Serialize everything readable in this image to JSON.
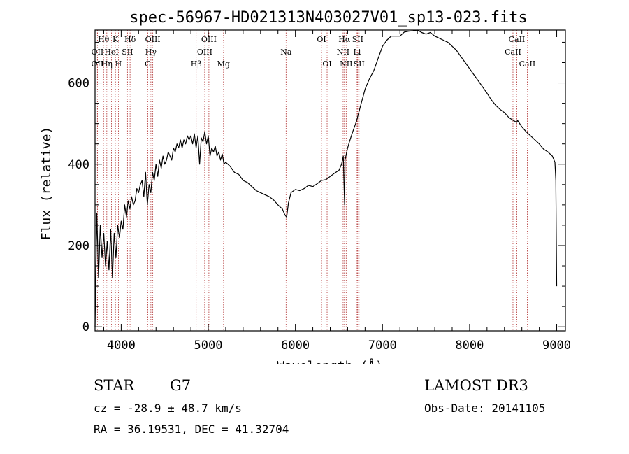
{
  "chart_data": {
    "type": "line",
    "title": "spec-56967-HD021313N403027V01_sp13-023.fits",
    "xlabel": "Wavelength (Å)",
    "ylabel": "Flux (relative)",
    "xlim": [
      3700,
      9100
    ],
    "ylim": [
      -10,
      730
    ],
    "xticks": [
      4000,
      5000,
      6000,
      7000,
      8000,
      9000
    ],
    "yticks": [
      0,
      200,
      400,
      600
    ],
    "series": [
      {
        "name": "flux",
        "x": [
          3700,
          3720,
          3740,
          3760,
          3780,
          3800,
          3820,
          3840,
          3860,
          3880,
          3900,
          3920,
          3940,
          3960,
          3980,
          4000,
          4020,
          4040,
          4060,
          4080,
          4100,
          4120,
          4140,
          4160,
          4180,
          4200,
          4220,
          4240,
          4260,
          4280,
          4300,
          4320,
          4340,
          4360,
          4380,
          4400,
          4420,
          4440,
          4460,
          4480,
          4500,
          4520,
          4540,
          4560,
          4580,
          4600,
          4620,
          4640,
          4660,
          4680,
          4700,
          4720,
          4740,
          4760,
          4780,
          4800,
          4820,
          4840,
          4860,
          4880,
          4900,
          4920,
          4940,
          4960,
          4980,
          5000,
          5020,
          5040,
          5060,
          5080,
          5100,
          5120,
          5140,
          5160,
          5180,
          5200,
          5250,
          5300,
          5350,
          5400,
          5450,
          5500,
          5550,
          5600,
          5650,
          5700,
          5750,
          5800,
          5850,
          5880,
          5900,
          5920,
          5950,
          6000,
          6050,
          6100,
          6150,
          6200,
          6250,
          6300,
          6350,
          6400,
          6450,
          6500,
          6530,
          6550,
          6560,
          6565,
          6570,
          6600,
          6620,
          6650,
          6700,
          6750,
          6800,
          6850,
          6900,
          6950,
          7000,
          7050,
          7100,
          7150,
          7200,
          7250,
          7300,
          7350,
          7400,
          7450,
          7500,
          7550,
          7600,
          7650,
          7700,
          7750,
          7800,
          7850,
          7900,
          7950,
          8000,
          8050,
          8100,
          8150,
          8200,
          8250,
          8300,
          8350,
          8400,
          8450,
          8500,
          8542,
          8550,
          8600,
          8650,
          8700,
          8750,
          8800,
          8850,
          8900,
          8950,
          8980,
          8990,
          9000
        ],
        "values": [
          0,
          280,
          120,
          250,
          170,
          230,
          150,
          210,
          140,
          240,
          120,
          230,
          170,
          250,
          220,
          260,
          240,
          300,
          270,
          310,
          290,
          320,
          300,
          310,
          340,
          330,
          350,
          360,
          320,
          380,
          300,
          350,
          330,
          380,
          360,
          400,
          370,
          410,
          390,
          420,
          400,
          410,
          430,
          420,
          410,
          440,
          430,
          450,
          440,
          460,
          440,
          460,
          450,
          470,
          460,
          470,
          450,
          475,
          440,
          470,
          400,
          465,
          455,
          480,
          450,
          470,
          420,
          440,
          430,
          445,
          420,
          430,
          410,
          425,
          400,
          405,
          395,
          380,
          375,
          360,
          355,
          345,
          335,
          330,
          325,
          320,
          312,
          300,
          290,
          275,
          270,
          305,
          330,
          338,
          335,
          340,
          348,
          345,
          352,
          360,
          362,
          370,
          378,
          385,
          400,
          420,
          340,
          300,
          410,
          440,
          455,
          475,
          505,
          545,
          585,
          610,
          630,
          660,
          690,
          705,
          715,
          715,
          715,
          725,
          727,
          728,
          730,
          724,
          720,
          724,
          715,
          710,
          705,
          700,
          690,
          680,
          665,
          650,
          635,
          620,
          605,
          590,
          575,
          558,
          545,
          535,
          527,
          515,
          508,
          503,
          508,
          492,
          480,
          470,
          460,
          450,
          437,
          430,
          420,
          405,
          360,
          100
        ]
      }
    ],
    "lines": [
      {
        "label": "Hθ",
        "wl": 3798,
        "row": 1
      },
      {
        "label": "OII",
        "wl": 3727,
        "row": 2
      },
      {
        "label": "OII",
        "wl": 3727,
        "row": 3
      },
      {
        "label": "Hη",
        "wl": 3835,
        "row": 3
      },
      {
        "label": "HeI",
        "wl": 3889,
        "row": 2
      },
      {
        "label": "K",
        "wl": 3934,
        "row": 1
      },
      {
        "label": "H",
        "wl": 3968,
        "row": 3
      },
      {
        "label": "SII",
        "wl": 4072,
        "row": 2
      },
      {
        "label": "Hδ",
        "wl": 4102,
        "row": 1
      },
      {
        "label": "G",
        "wl": 4305,
        "row": 3
      },
      {
        "label": "Hγ",
        "wl": 4341,
        "row": 2
      },
      {
        "label": "OIII",
        "wl": 4363,
        "row": 1
      },
      {
        "label": "Hβ",
        "wl": 4861,
        "row": 3
      },
      {
        "label": "OIII",
        "wl": 4959,
        "row": 2
      },
      {
        "label": "OIII",
        "wl": 5007,
        "row": 1
      },
      {
        "label": "Mg",
        "wl": 5175,
        "row": 3
      },
      {
        "label": "Na",
        "wl": 5893,
        "row": 2
      },
      {
        "label": "OI",
        "wl": 6300,
        "row": 1
      },
      {
        "label": "OI",
        "wl": 6364,
        "row": 3
      },
      {
        "label": "NII",
        "wl": 6548,
        "row": 2
      },
      {
        "label": "Hα",
        "wl": 6563,
        "row": 1
      },
      {
        "label": "NII",
        "wl": 6583,
        "row": 3
      },
      {
        "label": "SII",
        "wl": 6716,
        "row": 1
      },
      {
        "label": "Li",
        "wl": 6708,
        "row": 2
      },
      {
        "label": "SII",
        "wl": 6731,
        "row": 3
      },
      {
        "label": "CaII",
        "wl": 8498,
        "row": 2
      },
      {
        "label": "CaII",
        "wl": 8542,
        "row": 1
      },
      {
        "label": "CaII",
        "wl": 8662,
        "row": 3
      }
    ]
  },
  "info": {
    "object_type": "STAR",
    "subclass": "G7",
    "survey": "LAMOST DR3",
    "cz": "cz = -28.9 ± 48.7 km/s",
    "obs_date": "Obs-Date: 20141105",
    "radec": "RA =  36.19531, DEC =  41.32704"
  },
  "colors": {
    "line_marker": "#b03030",
    "spectrum": "#000000"
  }
}
